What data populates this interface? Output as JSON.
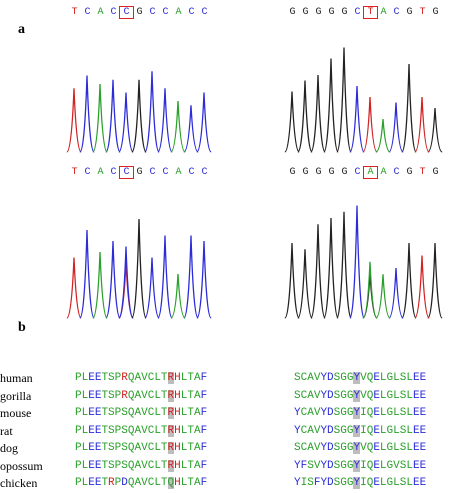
{
  "figure": {
    "panel_a_label": "a",
    "panel_b_label": "b",
    "chromatograms": [
      {
        "id": "top-left",
        "bases": [
          "T",
          "C",
          "A",
          "C",
          "C",
          "G",
          "C",
          "C",
          "A",
          "C",
          "C"
        ],
        "boxed_index": 4
      },
      {
        "id": "top-right",
        "bases": [
          "G",
          "G",
          "G",
          "G",
          "G",
          "C",
          "T",
          "A",
          "C",
          "G",
          "T",
          "G"
        ],
        "boxed_index": 6
      },
      {
        "id": "bottom-left",
        "bases": [
          "T",
          "C",
          "A",
          "C",
          "C",
          "G",
          "C",
          "C",
          "A",
          "C",
          "C"
        ],
        "boxed_index": 4
      },
      {
        "id": "bottom-right",
        "bases": [
          "G",
          "G",
          "G",
          "G",
          "G",
          "C",
          "A",
          "A",
          "C",
          "G",
          "T",
          "G"
        ],
        "boxed_index": 6
      }
    ],
    "base_colors": {
      "A": "#2aa02a",
      "C": "#2b2bd8",
      "G": "#222222",
      "T": "#d22222"
    },
    "alignment": {
      "species": [
        "human",
        "gorilla",
        "mouse",
        "rat",
        "dog",
        "opossum",
        "chicken"
      ],
      "left": [
        {
          "pre": "PLEETSPRQAVCLT",
          "hl": "R",
          "post": "HLTAF"
        },
        {
          "pre": "PLEETSPRQAVCLT",
          "hl": "R",
          "post": "HLTAF"
        },
        {
          "pre": "PLEETSPSQAVCLT",
          "hl": "R",
          "post": "HLTAF"
        },
        {
          "pre": "PLEETSPSQAVCLT",
          "hl": "R",
          "post": "HLTAF"
        },
        {
          "pre": "PLEETSPSQAVCLT",
          "hl": "R",
          "post": "HLTAF"
        },
        {
          "pre": "PLEETSPSQAVCLT",
          "hl": "R",
          "post": "HLTAF"
        },
        {
          "pre": "PLEETRPDQAVCLT",
          "hl": "Q",
          "post": "HLTAF"
        }
      ],
      "right": [
        {
          "pre": "SCAVYDSGG",
          "hl": "Y",
          "post": "VQELGLSLEE"
        },
        {
          "pre": "SCAVYDSGG",
          "hl": "Y",
          "post": "VQELGLSLEE"
        },
        {
          "pre": "YCAVYDSGG",
          "hl": "Y",
          "post": "IQELGLSLEE"
        },
        {
          "pre": "YCAVYDSGG",
          "hl": "Y",
          "post": "IQELGLSLEE"
        },
        {
          "pre": "SCAVYDSGG",
          "hl": "Y",
          "post": "VQELGLSLEE"
        },
        {
          "pre": "YFSVYDSGG",
          "hl": "Y",
          "post": "IQELGVSLEE"
        },
        {
          "pre": "YISFYDSGG",
          "hl": "Y",
          "post": "IQELGLSLEE"
        }
      ]
    },
    "aa_colors": {
      "default": "#2aa02a",
      "basic": "#d22222",
      "acidic": "#2b2bd8",
      "aromatic": "#2b2bd8"
    }
  }
}
